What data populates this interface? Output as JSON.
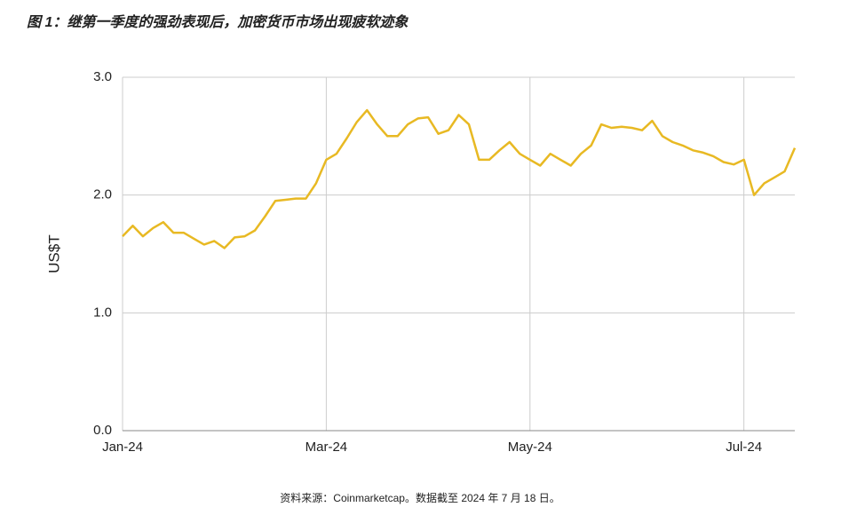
{
  "chart_data": {
    "type": "line",
    "title": "图 1：继第一季度的强劲表现后，加密货币市场出现疲软迹象",
    "ylabel": "US$T",
    "source": "资料来源：Coinmarketcap。数据截至 2024 年 7 月 18 日。",
    "categories": [
      "Jan-24",
      null,
      null,
      null,
      null,
      null,
      null,
      null,
      null,
      null,
      null,
      null,
      null,
      null,
      null,
      null,
      null,
      null,
      null,
      null,
      "Mar-24",
      null,
      null,
      null,
      null,
      null,
      null,
      null,
      null,
      null,
      null,
      null,
      null,
      null,
      null,
      null,
      null,
      null,
      null,
      null,
      "May-24",
      null,
      null,
      null,
      null,
      null,
      null,
      null,
      null,
      null,
      null,
      null,
      null,
      null,
      null,
      null,
      null,
      null,
      null,
      null,
      null,
      "Jul-24",
      null,
      null,
      null,
      null,
      null
    ],
    "series": [
      {
        "color": "#e8b923",
        "values": [
          1.65,
          1.74,
          1.65,
          1.72,
          1.77,
          1.68,
          1.68,
          1.63,
          1.58,
          1.61,
          1.55,
          1.64,
          1.65,
          1.7,
          1.82,
          1.95,
          1.96,
          1.97,
          1.97,
          2.1,
          2.3,
          2.35,
          2.48,
          2.62,
          2.72,
          2.6,
          2.5,
          2.5,
          2.6,
          2.65,
          2.66,
          2.52,
          2.55,
          2.68,
          2.6,
          2.3,
          2.3,
          2.38,
          2.45,
          2.35,
          2.3,
          2.25,
          2.35,
          2.3,
          2.25,
          2.35,
          2.42,
          2.6,
          2.57,
          2.58,
          2.57,
          2.55,
          2.63,
          2.5,
          2.45,
          2.42,
          2.38,
          2.36,
          2.33,
          2.28,
          2.26,
          2.3,
          2.0,
          2.1,
          2.15,
          2.2,
          2.4
        ]
      }
    ],
    "ylim": [
      0,
      3
    ],
    "yticks": [
      {
        "value": 0,
        "label": "0.0"
      },
      {
        "value": 1,
        "label": "1.0"
      },
      {
        "value": 2,
        "label": "2.0"
      },
      {
        "value": 3,
        "label": "3.0"
      }
    ],
    "grid": true
  }
}
